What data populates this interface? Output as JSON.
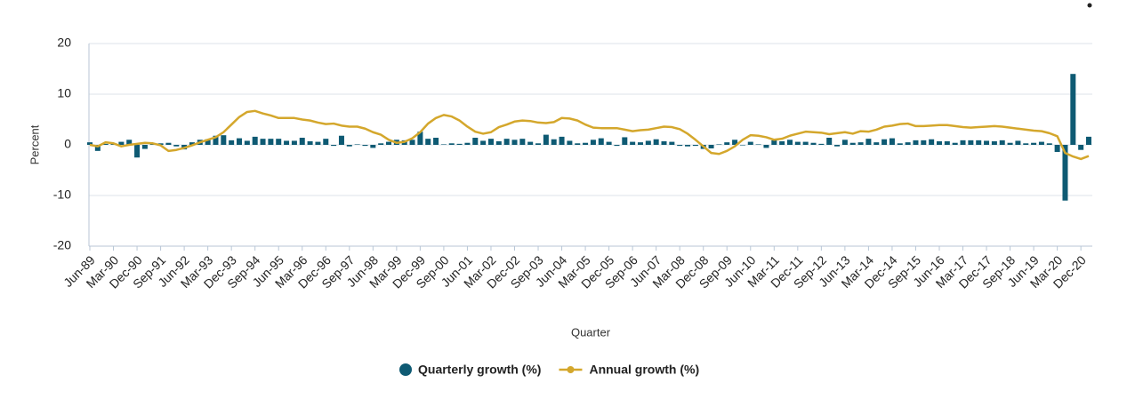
{
  "chart_data": {
    "type": "bar",
    "y_label": "Percent",
    "x_label": "Quarter",
    "categories": [
      "Jun-89",
      null,
      null,
      "Mar-90",
      null,
      null,
      "Dec-90",
      null,
      null,
      "Sep-91",
      null,
      null,
      "Jun-92",
      null,
      null,
      "Mar-93",
      null,
      null,
      "Dec-93",
      null,
      null,
      "Sep-94",
      null,
      null,
      "Jun-95",
      null,
      null,
      "Mar-96",
      null,
      null,
      "Dec-96",
      null,
      null,
      "Sep-97",
      null,
      null,
      "Jun-98",
      null,
      null,
      "Mar-99",
      null,
      null,
      "Dec-99",
      null,
      null,
      "Sep-00",
      null,
      null,
      "Jun-01",
      null,
      null,
      "Mar-02",
      null,
      null,
      "Dec-02",
      null,
      null,
      "Sep-03",
      null,
      null,
      "Jun-04",
      null,
      null,
      "Mar-05",
      null,
      null,
      "Dec-05",
      null,
      null,
      "Sep-06",
      null,
      null,
      "Jun-07",
      null,
      null,
      "Mar-08",
      null,
      null,
      "Dec-08",
      null,
      null,
      "Sep-09",
      null,
      null,
      "Jun-10",
      null,
      null,
      "Mar-11",
      null,
      null,
      "Dec-11",
      null,
      null,
      "Sep-12",
      null,
      null,
      "Jun-13",
      null,
      null,
      "Mar-14",
      null,
      null,
      "Dec-14",
      null,
      null,
      "Sep-15",
      null,
      null,
      "Jun-16",
      null,
      null,
      "Mar-17",
      null,
      null,
      "Dec-17",
      null,
      null,
      "Sep-18",
      null,
      null,
      "Jun-19",
      null,
      null,
      "Mar-20",
      null,
      null,
      "Dec-20",
      null
    ],
    "series": [
      {
        "name": "Quarterly growth (%)",
        "type": "bar",
        "color": "#0e5a73",
        "values": [
          0.5,
          -1.2,
          0.2,
          0.3,
          0.6,
          1.0,
          -2.5,
          -0.8,
          0.3,
          0.3,
          0.4,
          -0.3,
          -0.9,
          0.5,
          1.0,
          1.1,
          1.8,
          1.9,
          0.9,
          1.3,
          0.8,
          1.6,
          1.2,
          1.2,
          1.2,
          0.8,
          0.8,
          1.4,
          0.7,
          0.6,
          1.2,
          -0.2,
          1.8,
          -0.3,
          0.1,
          -0.2,
          -0.6,
          0.3,
          0.6,
          1.0,
          0.9,
          1.0,
          2.6,
          1.2,
          1.4,
          0.1,
          0.3,
          0.2,
          0.4,
          1.4,
          0.8,
          1.2,
          0.7,
          1.2,
          1.0,
          1.2,
          0.6,
          0.3,
          2.0,
          1.1,
          1.6,
          0.8,
          0.3,
          0.4,
          1.0,
          1.3,
          0.6,
          -0.2,
          1.5,
          0.6,
          0.5,
          0.8,
          1.1,
          0.7,
          0.6,
          -0.2,
          -0.3,
          -0.2,
          -0.8,
          -0.7,
          0.1,
          0.5,
          1.0,
          -0.1,
          0.6,
          0.1,
          -0.6,
          0.9,
          0.7,
          1.0,
          0.6,
          0.6,
          0.4,
          0.2,
          1.4,
          -0.3,
          1.0,
          0.4,
          0.5,
          1.2,
          0.5,
          1.1,
          1.3,
          0.3,
          0.5,
          0.9,
          0.9,
          1.1,
          0.7,
          0.7,
          0.4,
          0.9,
          0.9,
          0.9,
          0.8,
          0.7,
          0.9,
          0.4,
          0.8,
          0.3,
          0.4,
          0.6,
          0.3,
          -1.4,
          -11,
          14,
          -1,
          1.6
        ]
      },
      {
        "name": "Annual growth (%)",
        "type": "line",
        "color": "#d4a72c",
        "values": [
          0.0,
          -0.3,
          0.5,
          0.3,
          -0.3,
          0.0,
          0.2,
          0.4,
          0.3,
          -0.1,
          -1.2,
          -1.0,
          -0.6,
          -0.1,
          0.5,
          1.0,
          1.5,
          2.5,
          4.0,
          5.5,
          6.5,
          6.7,
          6.2,
          5.8,
          5.3,
          5.3,
          5.3,
          5.0,
          4.8,
          4.4,
          4.1,
          4.2,
          3.8,
          3.6,
          3.6,
          3.2,
          2.5,
          2.0,
          1.0,
          0.4,
          0.6,
          1.3,
          2.5,
          4.2,
          5.3,
          5.9,
          5.6,
          4.8,
          3.6,
          2.6,
          2.2,
          2.5,
          3.5,
          4.0,
          4.6,
          4.8,
          4.7,
          4.4,
          4.3,
          4.5,
          5.3,
          5.2,
          4.8,
          4.0,
          3.4,
          3.3,
          3.3,
          3.3,
          3.0,
          2.7,
          2.9,
          3.0,
          3.3,
          3.6,
          3.5,
          3.1,
          2.2,
          1.0,
          -0.3,
          -1.6,
          -1.8,
          -1.2,
          -0.3,
          1.0,
          1.9,
          1.8,
          1.5,
          1.0,
          1.2,
          1.8,
          2.2,
          2.6,
          2.5,
          2.4,
          2.1,
          2.3,
          2.5,
          2.2,
          2.7,
          2.6,
          3.0,
          3.6,
          3.8,
          4.1,
          4.2,
          3.7,
          3.7,
          3.8,
          3.9,
          3.9,
          3.7,
          3.5,
          3.4,
          3.5,
          3.6,
          3.7,
          3.6,
          3.4,
          3.2,
          3.0,
          2.8,
          2.7,
          2.3,
          1.7,
          -1.6,
          -2.3,
          -2.8,
          -2.2
        ]
      }
    ],
    "ylim": [
      -20,
      20
    ],
    "yticks": [
      -20,
      -10,
      0,
      10,
      20
    ],
    "grid": true
  }
}
